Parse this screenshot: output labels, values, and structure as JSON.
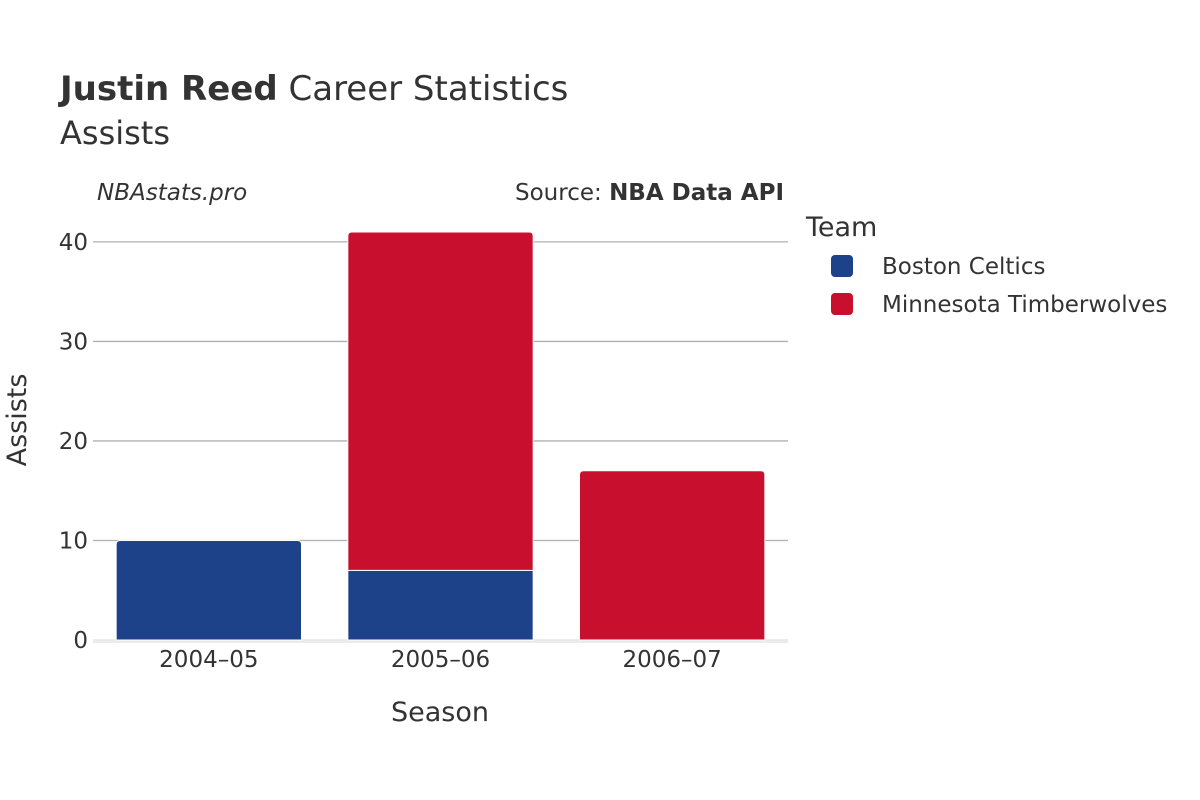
{
  "header": {
    "title_bold": "Justin Reed",
    "title_rest": " Career Statistics",
    "subtitle": "Assists",
    "watermark": "NBAstats.pro",
    "source_prefix": "Source: ",
    "source_name": "NBA Data API"
  },
  "legend": {
    "title": "Team"
  },
  "chart_data": {
    "type": "bar",
    "stacked": true,
    "categories": [
      "2004–05",
      "2005–06",
      "2006–07"
    ],
    "series": [
      {
        "name": "Boston Celtics",
        "color": "#1D428A",
        "values": [
          10,
          7,
          0
        ]
      },
      {
        "name": "Minnesota Timberwolves",
        "color": "#C8102E",
        "values": [
          0,
          34,
          17
        ]
      }
    ],
    "xlabel": "Season",
    "ylabel": "Assists",
    "ylim": [
      0,
      42
    ],
    "yticks": [
      0,
      10,
      20,
      30,
      40
    ],
    "grid": true,
    "legend_position": "right"
  }
}
